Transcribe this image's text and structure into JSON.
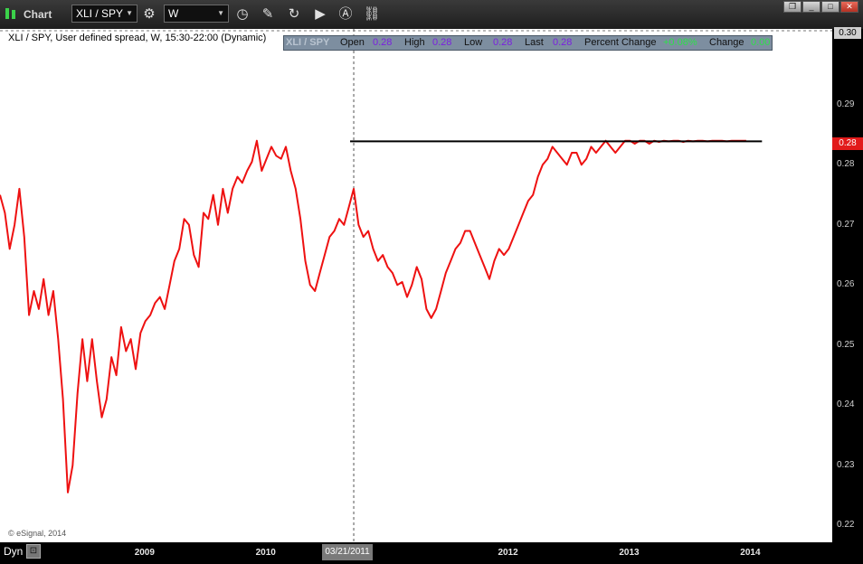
{
  "window": {
    "title": "Chart",
    "symbol": "XLI / SPY",
    "interval": "W"
  },
  "icons": {
    "app": "chart-app-icon",
    "settings": "settings-gear-icon",
    "time": "clock-icon",
    "draw": "pencil-icon",
    "refresh": "refresh-icon",
    "play": "play-icon",
    "auto": "auto-scale-icon",
    "link": "link-icon"
  },
  "chart_info": {
    "description": "XLI / SPY, User defined spread, W, 15:30-22:00 (Dynamic)",
    "copyright": "© eSignal, 2014"
  },
  "databox": {
    "symbol": "XLI / SPY",
    "open_label": "Open",
    "open": "0.28",
    "high_label": "High",
    "high": "0.28",
    "low_label": "Low",
    "low": "0.28",
    "last_label": "Last",
    "last": "0.28",
    "pct_label": "Percent Change",
    "pct": "+0.08%",
    "chg_label": "Change",
    "chg": "0.00"
  },
  "cursor_date": "03/21/2011",
  "footer": {
    "mode_label": "Dyn"
  },
  "y_top_label": "0.30",
  "y_current_label": "0.28",
  "colors": {
    "series": "#ee1111",
    "background": "#ffffff",
    "frame": "#000000",
    "current_badge": "#e21b1b"
  },
  "chart_data": {
    "type": "line",
    "title": "",
    "xlabel": "",
    "ylabel": "",
    "x_tick_labels": [
      "2009",
      "2010",
      "2012",
      "2013",
      "2014"
    ],
    "y_tick_labels": [
      "0.30",
      "0.29",
      "0.28",
      "0.27",
      "0.26",
      "0.25",
      "0.24",
      "0.23",
      "0.22"
    ],
    "y_ticks": [
      0.3,
      0.29,
      0.28,
      0.27,
      0.26,
      0.25,
      0.24,
      0.23,
      0.22
    ],
    "ylim": [
      0.2172,
      0.3026
    ],
    "xlim": [
      2008.3,
      2015.17
    ],
    "grid": false,
    "crosshair_x": 2011.22,
    "resistance_line": {
      "x_start": 2011.19,
      "x_end": 2014.59,
      "y": 0.2839
    },
    "series": [
      {
        "x": [
          2008.3,
          2008.34,
          2008.38,
          2008.42,
          2008.46,
          2008.5,
          2008.54,
          2008.58,
          2008.62,
          2008.66,
          2008.7,
          2008.74,
          2008.78,
          2008.82,
          2008.86,
          2008.9,
          2008.94,
          2008.98,
          2009.02,
          2009.06,
          2009.1,
          2009.14,
          2009.18,
          2009.22,
          2009.26,
          2009.3,
          2009.34,
          2009.38,
          2009.42,
          2009.46,
          2009.5,
          2009.54,
          2009.58,
          2009.62,
          2009.66,
          2009.7,
          2009.74,
          2009.78,
          2009.82,
          2009.86,
          2009.9,
          2009.94,
          2009.98,
          2010.02,
          2010.06,
          2010.1,
          2010.14,
          2010.18,
          2010.22,
          2010.26,
          2010.3,
          2010.34,
          2010.38,
          2010.42,
          2010.46,
          2010.5,
          2010.54,
          2010.58,
          2010.62,
          2010.66,
          2010.7,
          2010.74,
          2010.78,
          2010.82,
          2010.86,
          2010.9,
          2010.94,
          2010.98,
          2011.02,
          2011.06,
          2011.1,
          2011.14,
          2011.18,
          2011.22,
          2011.26,
          2011.3,
          2011.34,
          2011.38,
          2011.42,
          2011.46,
          2011.5,
          2011.54,
          2011.58,
          2011.62,
          2011.66,
          2011.7,
          2011.74,
          2011.78,
          2011.82,
          2011.86,
          2011.9,
          2011.94,
          2011.98,
          2012.02,
          2012.06,
          2012.1,
          2012.14,
          2012.18,
          2012.22,
          2012.26,
          2012.3,
          2012.34,
          2012.38,
          2012.42,
          2012.46,
          2012.5,
          2012.54,
          2012.58,
          2012.62,
          2012.66,
          2012.7,
          2012.74,
          2012.78,
          2012.82,
          2012.86,
          2012.9,
          2012.94,
          2012.98,
          2013.02,
          2013.06,
          2013.1,
          2013.14,
          2013.18,
          2013.22,
          2013.26,
          2013.3,
          2013.34,
          2013.38,
          2013.42,
          2013.46,
          2013.5,
          2013.54,
          2013.58,
          2013.62,
          2013.66,
          2013.7,
          2013.74,
          2013.78,
          2013.82,
          2013.86,
          2013.9,
          2013.94,
          2013.98,
          2014.02,
          2014.06,
          2014.1,
          2014.14,
          2014.18,
          2014.22,
          2014.26,
          2014.3,
          2014.34,
          2014.38,
          2014.42,
          2014.46
        ],
        "values": [
          0.275,
          0.272,
          0.266,
          0.27,
          0.276,
          0.268,
          0.255,
          0.259,
          0.256,
          0.261,
          0.255,
          0.259,
          0.251,
          0.241,
          0.2255,
          0.23,
          0.242,
          0.251,
          0.244,
          0.251,
          0.244,
          0.238,
          0.241,
          0.248,
          0.245,
          0.253,
          0.249,
          0.251,
          0.246,
          0.252,
          0.254,
          0.255,
          0.257,
          0.258,
          0.256,
          0.26,
          0.264,
          0.266,
          0.271,
          0.27,
          0.265,
          0.263,
          0.272,
          0.271,
          0.275,
          0.27,
          0.276,
          0.272,
          0.276,
          0.278,
          0.277,
          0.279,
          0.2805,
          0.284,
          0.279,
          0.281,
          0.283,
          0.2815,
          0.281,
          0.283,
          0.279,
          0.276,
          0.271,
          0.264,
          0.26,
          0.259,
          0.262,
          0.265,
          0.268,
          0.269,
          0.271,
          0.27,
          0.273,
          0.276,
          0.27,
          0.268,
          0.269,
          0.266,
          0.264,
          0.265,
          0.263,
          0.262,
          0.26,
          0.2605,
          0.258,
          0.26,
          0.263,
          0.261,
          0.256,
          0.2545,
          0.256,
          0.259,
          0.262,
          0.264,
          0.266,
          0.267,
          0.269,
          0.269,
          0.267,
          0.265,
          0.263,
          0.261,
          0.264,
          0.266,
          0.265,
          0.266,
          0.268,
          0.27,
          0.272,
          0.274,
          0.275,
          0.278,
          0.28,
          0.281,
          0.283,
          0.282,
          0.281,
          0.28,
          0.282,
          0.282,
          0.28,
          0.281,
          0.283,
          0.282,
          0.283,
          0.284,
          0.283,
          0.282,
          0.283,
          0.284,
          0.284,
          0.2835,
          0.284,
          0.284,
          0.2835,
          0.284,
          0.2838,
          0.284,
          0.2839,
          0.284,
          0.284,
          0.2838,
          0.284,
          0.2839,
          0.284,
          0.284,
          0.2839,
          0.284,
          0.284,
          0.284,
          0.2839,
          0.284,
          0.284,
          0.284,
          0.284
        ]
      }
    ]
  }
}
